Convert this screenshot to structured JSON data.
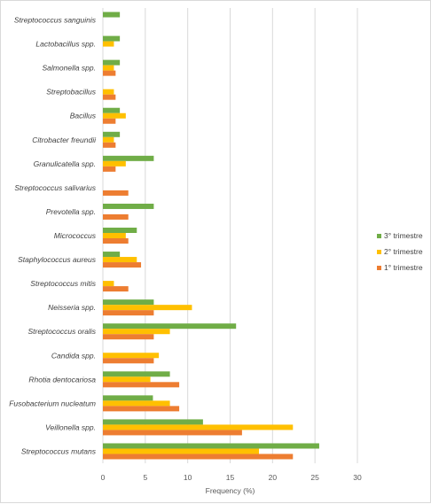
{
  "chart_data": {
    "type": "bar",
    "orientation": "horizontal",
    "title": "",
    "xlabel": "Frequency (%)",
    "ylabel": "",
    "xlim": [
      0,
      30
    ],
    "xticks": [
      0,
      5,
      10,
      15,
      20,
      25,
      30
    ],
    "grid": "vertical",
    "legend_position": "right",
    "categories": [
      "Streptococcus sanguinis",
      "Lactobacillus spp.",
      "Salmonella spp.",
      "Streptobacillus",
      "Bacillus",
      "Citrobacter freundii",
      "Granulicatella spp.",
      "Streptococcus salivarius",
      "Prevotella spp.",
      "Micrococcus",
      "Staphylococcus aureus",
      "Streptococcus mitis",
      "Neisseria spp.",
      "Streptococcus oralis",
      "Candida spp.",
      "Rhotia dentocariosa",
      "Fusobacterium nucleatum",
      "Veillonella spp.",
      "Streptococcus mutans"
    ],
    "series": [
      {
        "name": "3° trimestre",
        "color": "#70ad47",
        "values": [
          2,
          2,
          2,
          0,
          2,
          2,
          6,
          0,
          6,
          4,
          2,
          0,
          6,
          15.7,
          0,
          7.9,
          5.9,
          11.8,
          25.5
        ]
      },
      {
        "name": "2° trimestre",
        "color": "#ffc000",
        "values": [
          0,
          1.3,
          1.3,
          1.3,
          2.7,
          1.3,
          2.7,
          0,
          0,
          2.7,
          4,
          1.3,
          10.5,
          7.9,
          6.6,
          5.6,
          7.9,
          22.4,
          18.4
        ]
      },
      {
        "name": "1° trimestre",
        "color": "#ed7d31",
        "values": [
          0,
          0,
          1.5,
          1.5,
          1.5,
          1.5,
          1.5,
          3,
          3,
          3,
          4.5,
          3,
          6,
          6,
          6,
          9,
          9,
          16.4,
          22.4
        ]
      }
    ],
    "legend": [
      "3° trimestre",
      "2° trimestre",
      "1° trimestre"
    ]
  }
}
